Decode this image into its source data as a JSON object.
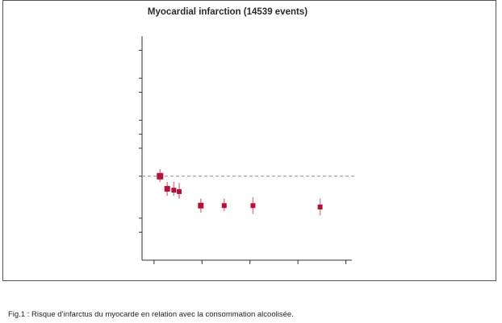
{
  "caption": "Fig.1 : Risque d’infarctus du myocarde en relation avec la consommation alcoolisée.",
  "colors": {
    "marker": "#b5123a",
    "ci": "#e08a9e",
    "reference": "#8a8a9a",
    "axis": "#333333"
  },
  "chart_data": {
    "type": "scatter",
    "title": "Myocardial infarction (14539 events)",
    "xlabel": "",
    "ylabel": "",
    "ylim": [
      0.4,
      2.0
    ],
    "xlim": [
      -2,
      33
    ],
    "reference_line": 1.0,
    "x_ticks": [
      0,
      8,
      16,
      24,
      32
    ],
    "y_ticks": [
      0.6,
      0.7,
      1.0,
      1.2,
      1.3,
      1.4,
      1.6,
      1.7,
      1.9
    ],
    "points": [
      {
        "x": 1.0,
        "y": 1.0,
        "lo": 0.96,
        "hi": 1.05,
        "size": "large"
      },
      {
        "x": 2.2,
        "y": 0.91,
        "lo": 0.86,
        "hi": 0.96,
        "size": "medium"
      },
      {
        "x": 3.3,
        "y": 0.9,
        "lo": 0.86,
        "hi": 0.96,
        "size": "small"
      },
      {
        "x": 4.2,
        "y": 0.89,
        "lo": 0.84,
        "hi": 0.95,
        "size": "small"
      },
      {
        "x": 7.8,
        "y": 0.79,
        "lo": 0.74,
        "hi": 0.84,
        "size": "medium"
      },
      {
        "x": 11.7,
        "y": 0.79,
        "lo": 0.75,
        "hi": 0.84,
        "size": "small"
      },
      {
        "x": 16.5,
        "y": 0.79,
        "lo": 0.73,
        "hi": 0.85,
        "size": "small"
      },
      {
        "x": 27.7,
        "y": 0.78,
        "lo": 0.72,
        "hi": 0.84,
        "size": "small"
      }
    ]
  }
}
